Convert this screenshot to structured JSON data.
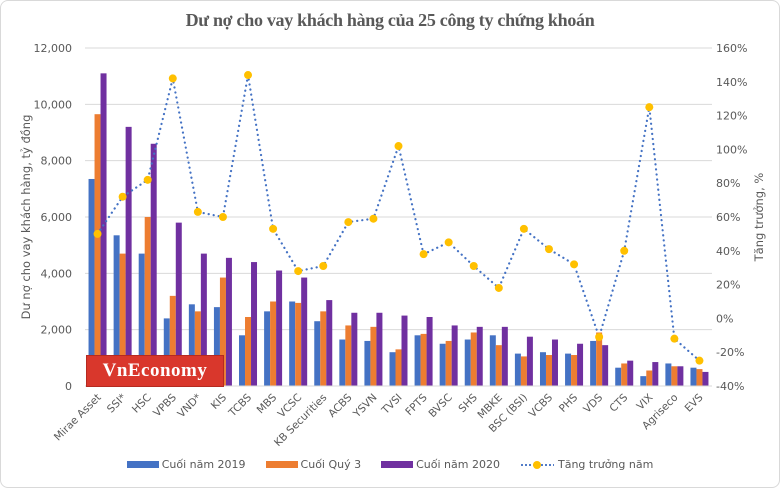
{
  "chart_data": {
    "type": "bar",
    "title": "Dư nợ cho vay khách hàng của 25 công ty chứng khoán",
    "xlabel": "",
    "ylabel": "Dư nợ cho vay khách hàng, tỷ đồng",
    "y2label": "Tăng trưởng, %",
    "ylim": [
      0,
      12000
    ],
    "y2lim": [
      -40,
      160
    ],
    "yticks": [
      "0",
      "2,000",
      "4,000",
      "6,000",
      "8,000",
      "10,000",
      "12,000"
    ],
    "y2ticks": [
      "-40%",
      "-20%",
      "0%",
      "20%",
      "40%",
      "60%",
      "80%",
      "100%",
      "120%",
      "140%",
      "160%"
    ],
    "grid": true,
    "legend_position": "bottom",
    "categories": [
      "Mirae Asset",
      "SSI*",
      "HSC",
      "VPBS",
      "VND*",
      "KIS",
      "TCBS",
      "MBS",
      "VCSC",
      "KB Securities",
      "ACBS",
      "YSVN",
      "TVSI",
      "FPTS",
      "BVSC",
      "SHS",
      "MBKE",
      "BSC (BSI)",
      "VCBS",
      "PHS",
      "VDS",
      "CTS",
      "VIX",
      "Agriseco",
      "EVS"
    ],
    "series": [
      {
        "name": "Cuối năm 2019",
        "type": "bar",
        "axis": "left",
        "color": "#4472c4",
        "values": [
          7350,
          5350,
          4700,
          2400,
          2900,
          2800,
          1800,
          2650,
          3000,
          2300,
          1650,
          1600,
          1200,
          1800,
          1500,
          1650,
          1800,
          1150,
          1200,
          1150,
          1600,
          650,
          350,
          800,
          650
        ]
      },
      {
        "name": "Cuối Quý 3",
        "type": "bar",
        "axis": "left",
        "color": "#ed7d31",
        "values": [
          9650,
          4700,
          6000,
          3200,
          2650,
          3850,
          2450,
          3000,
          2950,
          2650,
          2150,
          2100,
          1300,
          1850,
          1600,
          1900,
          1450,
          1050,
          1100,
          1100,
          1900,
          800,
          550,
          700,
          600
        ]
      },
      {
        "name": "Cuối năm 2020",
        "type": "bar",
        "axis": "left",
        "color": "#7030a0",
        "values": [
          11100,
          9200,
          8600,
          5800,
          4700,
          4550,
          4400,
          4100,
          3850,
          3050,
          2600,
          2600,
          2500,
          2450,
          2150,
          2100,
          2100,
          1750,
          1650,
          1500,
          1450,
          900,
          850,
          700,
          500
        ]
      },
      {
        "name": "Tăng trưởng năm",
        "type": "line",
        "axis": "right",
        "color": "#4472c4",
        "marker_color": "#ffc000",
        "line_style": "dotted",
        "values": [
          50,
          72,
          82,
          142,
          63,
          60,
          144,
          53,
          28,
          31,
          57,
          59,
          102,
          38,
          45,
          31,
          18,
          53,
          41,
          32,
          -11,
          40,
          125,
          -12,
          -25
        ]
      }
    ]
  },
  "watermark": "VnEconomy",
  "legend": {
    "items": [
      {
        "label": "Cuối năm 2019"
      },
      {
        "label": "Cuối Quý 3"
      },
      {
        "label": "Cuối năm 2020"
      },
      {
        "label": "Tăng trưởng năm"
      }
    ]
  }
}
